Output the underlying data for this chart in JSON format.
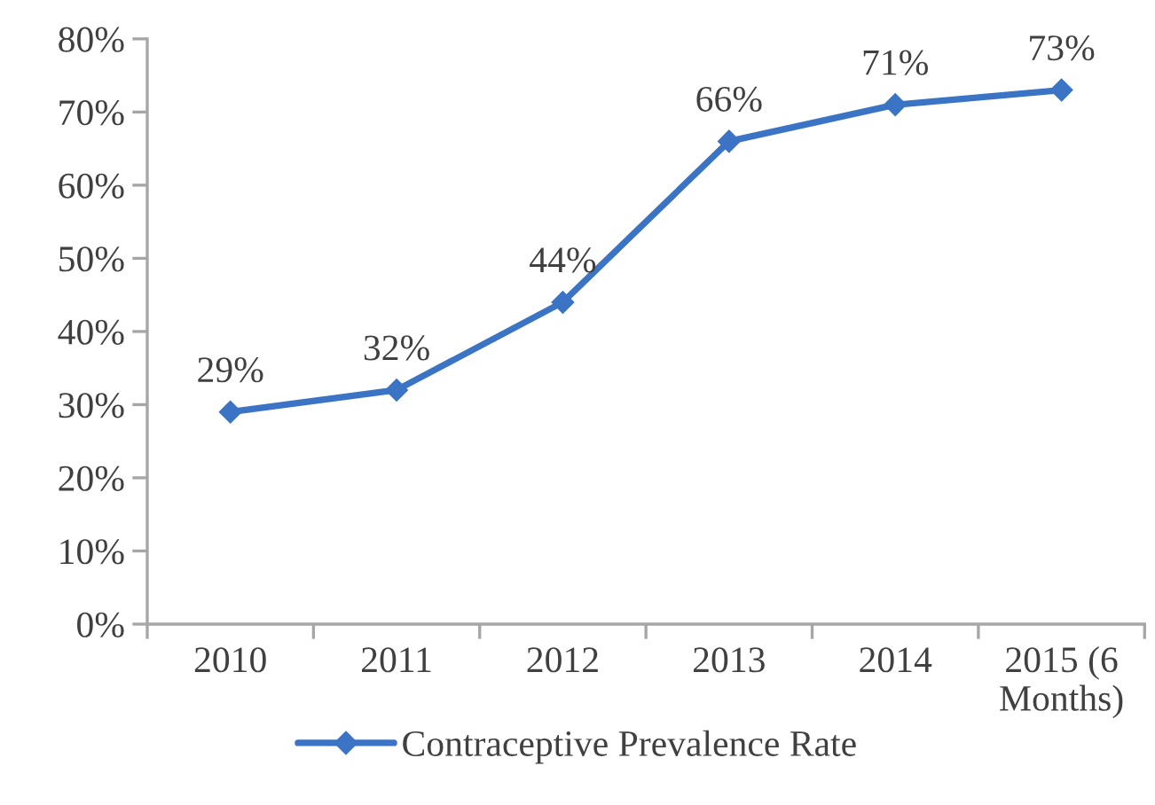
{
  "chart_data": {
    "type": "line",
    "categories": [
      "2010",
      "2011",
      "2012",
      "2013",
      "2014",
      "2015 (6\nMonths)"
    ],
    "series": [
      {
        "name": "Contraceptive Prevalence Rate",
        "color": "#3b74c4",
        "values": [
          29,
          32,
          44,
          66,
          71,
          73
        ],
        "value_labels": [
          "29%",
          "32%",
          "44%",
          "66%",
          "71%",
          "73%"
        ]
      }
    ],
    "ylim": [
      0,
      80
    ],
    "yticks": [
      {
        "value": 0,
        "label": "0%"
      },
      {
        "value": 10,
        "label": "10%"
      },
      {
        "value": 20,
        "label": "20%"
      },
      {
        "value": 30,
        "label": "30%"
      },
      {
        "value": 40,
        "label": "40%"
      },
      {
        "value": 50,
        "label": "50%"
      },
      {
        "value": 60,
        "label": "60%"
      },
      {
        "value": 70,
        "label": "70%"
      },
      {
        "value": 80,
        "label": "80%"
      }
    ],
    "grid": false,
    "legend": "bottom",
    "marker": "diamond",
    "line_style": "solid"
  }
}
